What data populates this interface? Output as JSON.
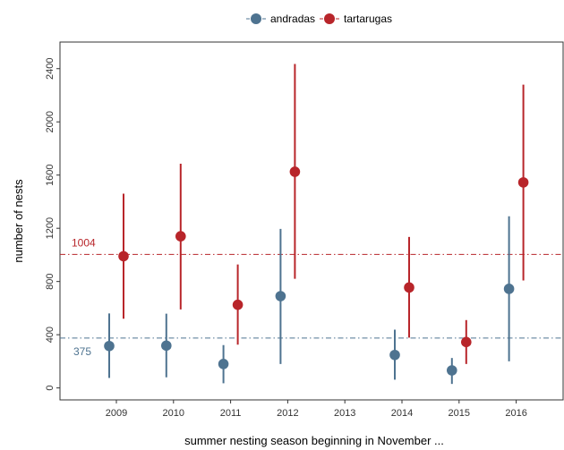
{
  "chart_data": {
    "type": "scatter",
    "subtype": "point-range",
    "xlabel": "summer nesting season beginning in November ...",
    "ylabel": "number of nests",
    "categories": [
      "2009",
      "2010",
      "2011",
      "2012",
      "2013",
      "2014",
      "2015",
      "2016"
    ],
    "ylim": [
      -90,
      2600
    ],
    "yticks": [
      0,
      400,
      800,
      1200,
      1600,
      2000,
      2400
    ],
    "grid": false,
    "legend_position": "top",
    "series": [
      {
        "name": "andradas",
        "color": "#4e7390",
        "points": [
          {
            "x": "2009",
            "y": 315,
            "low": 75,
            "high": 560
          },
          {
            "x": "2010",
            "y": 318,
            "low": 80,
            "high": 558
          },
          {
            "x": "2011",
            "y": 180,
            "low": 35,
            "high": 322
          },
          {
            "x": "2012",
            "y": 690,
            "low": 180,
            "high": 1195
          },
          {
            "x": "2014",
            "y": 248,
            "low": 62,
            "high": 438
          },
          {
            "x": "2015",
            "y": 132,
            "low": 30,
            "high": 225
          },
          {
            "x": "2016",
            "y": 745,
            "low": 200,
            "high": 1290
          }
        ]
      },
      {
        "name": "tartarugas",
        "color": "#b8252a",
        "points": [
          {
            "x": "2009",
            "y": 990,
            "low": 520,
            "high": 1460
          },
          {
            "x": "2010",
            "y": 1140,
            "low": 590,
            "high": 1685
          },
          {
            "x": "2011",
            "y": 625,
            "low": 325,
            "high": 928
          },
          {
            "x": "2012",
            "y": 1625,
            "low": 820,
            "high": 2435
          },
          {
            "x": "2014",
            "y": 755,
            "low": 378,
            "high": 1135
          },
          {
            "x": "2015",
            "y": 345,
            "low": 180,
            "high": 510
          },
          {
            "x": "2016",
            "y": 1545,
            "low": 808,
            "high": 2280
          }
        ]
      }
    ],
    "reference_lines": [
      {
        "value": 1004,
        "label": "1004",
        "color": "#b8252a"
      },
      {
        "value": 375,
        "label": "375",
        "color": "#4e7390"
      }
    ]
  }
}
